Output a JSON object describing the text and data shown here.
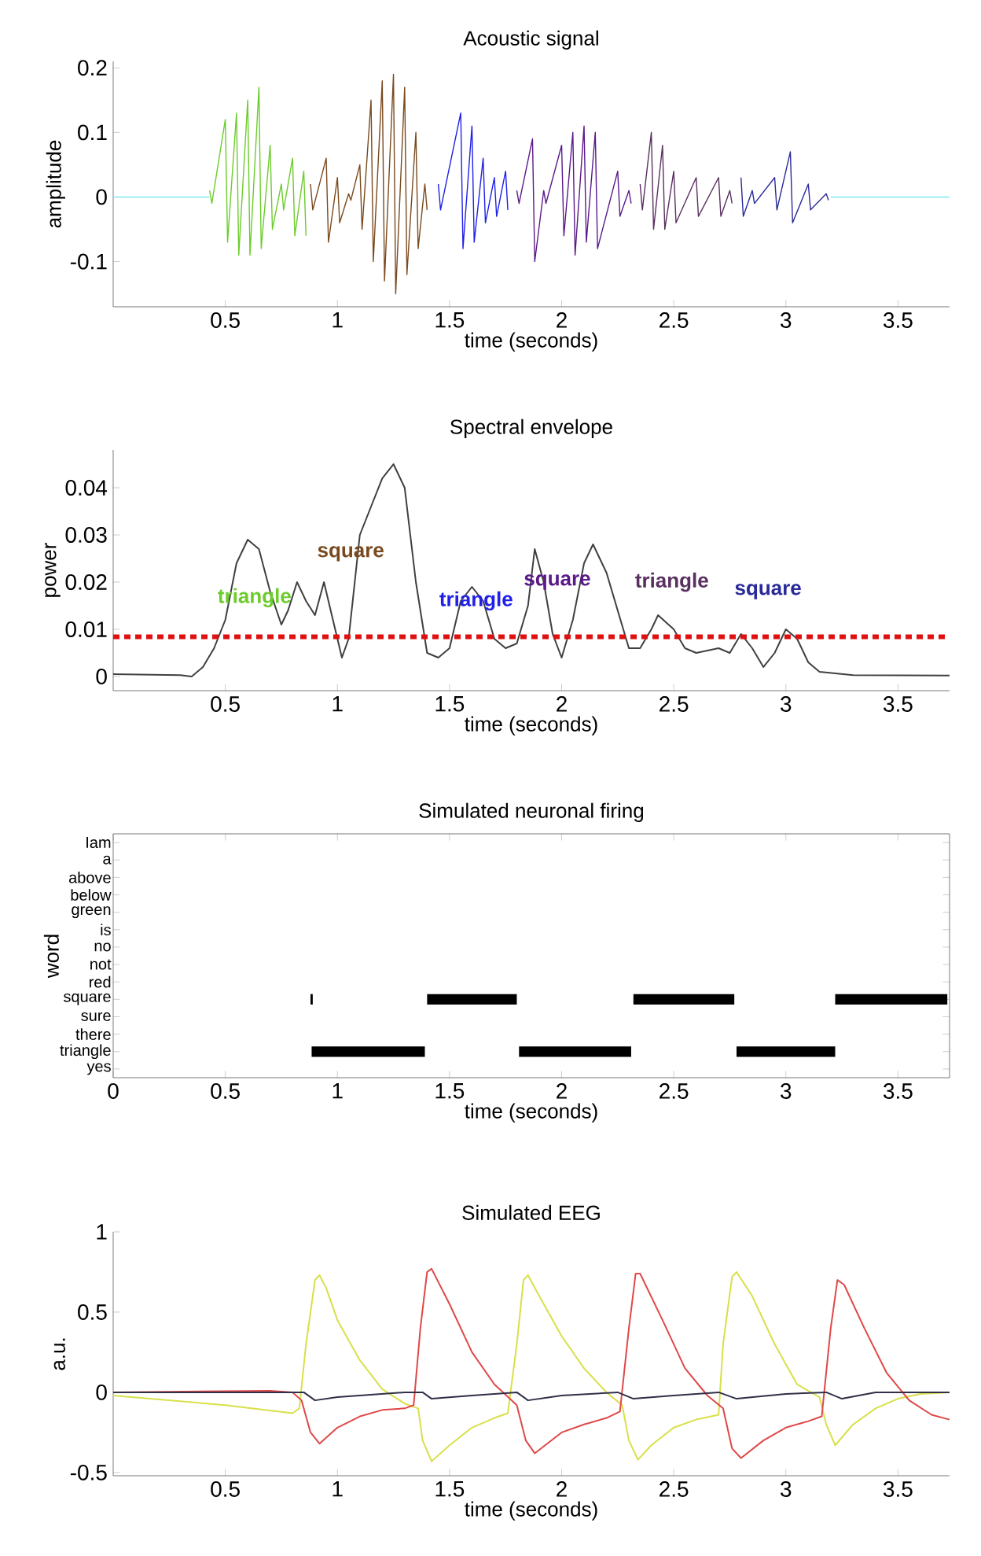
{
  "chart_data": [
    {
      "type": "line",
      "title": "Acoustic signal",
      "xlabel": "time (seconds)",
      "ylabel": "amplitude",
      "xlim": [
        0,
        3.73
      ],
      "ylim": [
        -0.17,
        0.21
      ],
      "xticks": [
        0.5,
        1,
        1.5,
        2,
        2.5,
        3,
        3.5
      ],
      "yticks": [
        -0.1,
        0,
        0.1,
        0.2
      ],
      "series": [
        {
          "color": "#7fe8f0",
          "x": [
            0,
            0.43
          ],
          "values": [
            0,
            0
          ]
        },
        {
          "color": "#6ccc2c",
          "x": [
            0.43,
            0.44,
            0.5,
            0.51,
            0.55,
            0.56,
            0.6,
            0.61,
            0.65,
            0.66,
            0.7,
            0.71,
            0.75,
            0.76,
            0.8,
            0.81,
            0.85,
            0.86
          ],
          "values": [
            0.01,
            -0.01,
            0.12,
            -0.07,
            0.13,
            -0.09,
            0.15,
            -0.09,
            0.17,
            -0.08,
            0.08,
            -0.05,
            0.02,
            -0.02,
            0.06,
            -0.06,
            0.04,
            -0.06
          ]
        },
        {
          "color": "#7a4a1e",
          "x": [
            0.88,
            0.89,
            0.95,
            0.96,
            1.0,
            1.01,
            1.05,
            1.06,
            1.1,
            1.11,
            1.15,
            1.16,
            1.2,
            1.21,
            1.25,
            1.26,
            1.3,
            1.31,
            1.35,
            1.36,
            1.39,
            1.4
          ],
          "values": [
            0.02,
            -0.02,
            0.06,
            -0.07,
            0.03,
            -0.04,
            0.005,
            -0.005,
            0.05,
            -0.05,
            0.15,
            -0.1,
            0.18,
            -0.13,
            0.19,
            -0.15,
            0.17,
            -0.12,
            0.1,
            -0.08,
            0.02,
            -0.02
          ]
        },
        {
          "color": "#2020e8",
          "x": [
            1.45,
            1.46,
            1.55,
            1.56,
            1.6,
            1.61,
            1.65,
            1.66,
            1.7,
            1.71,
            1.75,
            1.76
          ],
          "values": [
            0.02,
            -0.02,
            0.13,
            -0.08,
            0.11,
            -0.07,
            0.06,
            -0.04,
            0.03,
            -0.03,
            0.04,
            -0.02
          ]
        },
        {
          "color": "#5a1a8a",
          "x": [
            1.8,
            1.81,
            1.87,
            1.88,
            1.92,
            1.93,
            2.0,
            2.01,
            2.05,
            2.06,
            2.1,
            2.11,
            2.15,
            2.16,
            2.25,
            2.26,
            2.3,
            2.31
          ],
          "values": [
            0.01,
            -0.01,
            0.09,
            -0.1,
            0.01,
            -0.01,
            0.08,
            -0.06,
            0.1,
            -0.09,
            0.11,
            -0.07,
            0.1,
            -0.08,
            0.04,
            -0.03,
            0.01,
            -0.01
          ]
        },
        {
          "color": "#5a3060",
          "x": [
            2.35,
            2.36,
            2.4,
            2.41,
            2.45,
            2.46,
            2.5,
            2.51,
            2.6,
            2.61,
            2.7,
            2.71,
            2.75,
            2.76
          ],
          "values": [
            0.02,
            -0.02,
            0.1,
            -0.05,
            0.08,
            -0.05,
            0.04,
            -0.04,
            0.03,
            -0.03,
            0.03,
            -0.03,
            0.01,
            -0.01
          ]
        },
        {
          "color": "#2a2a9a",
          "x": [
            2.8,
            2.81,
            2.85,
            2.86,
            2.95,
            2.96,
            3.02,
            3.03,
            3.1,
            3.11,
            3.18,
            3.19
          ],
          "values": [
            0.03,
            -0.03,
            0.01,
            -0.01,
            0.03,
            -0.02,
            0.07,
            -0.04,
            0.02,
            -0.02,
            0.005,
            -0.005
          ]
        },
        {
          "color": "#7fe8f0",
          "x": [
            3.2,
            3.73
          ],
          "values": [
            0,
            0
          ]
        }
      ]
    },
    {
      "type": "line",
      "title": "Spectral envelope",
      "xlabel": "time (seconds)",
      "ylabel": "power",
      "xlim": [
        0,
        3.73
      ],
      "ylim": [
        -0.003,
        0.048
      ],
      "xticks": [
        0.5,
        1,
        1.5,
        2,
        2.5,
        3,
        3.5
      ],
      "yticks": [
        0,
        0.01,
        0.02,
        0.03,
        0.04
      ],
      "series": [
        {
          "color": "#404040",
          "x": [
            0,
            0.3,
            0.35,
            0.4,
            0.45,
            0.5,
            0.55,
            0.6,
            0.65,
            0.7,
            0.75,
            0.78,
            0.82,
            0.86,
            0.9,
            0.94,
            0.98,
            1.02,
            1.05,
            1.1,
            1.15,
            1.2,
            1.25,
            1.3,
            1.35,
            1.4,
            1.45,
            1.5,
            1.55,
            1.6,
            1.65,
            1.7,
            1.75,
            1.8,
            1.85,
            1.88,
            1.92,
            1.96,
            2.0,
            2.05,
            2.1,
            2.14,
            2.2,
            2.25,
            2.3,
            2.35,
            2.4,
            2.43,
            2.5,
            2.55,
            2.6,
            2.7,
            2.75,
            2.8,
            2.85,
            2.9,
            2.95,
            3.0,
            3.05,
            3.1,
            3.15,
            3.3,
            3.73
          ],
          "values": [
            0.0005,
            0.0003,
            0,
            0.002,
            0.006,
            0.012,
            0.024,
            0.029,
            0.027,
            0.018,
            0.011,
            0.014,
            0.02,
            0.016,
            0.013,
            0.02,
            0.012,
            0.004,
            0.008,
            0.03,
            0.036,
            0.042,
            0.045,
            0.04,
            0.02,
            0.005,
            0.004,
            0.006,
            0.016,
            0.019,
            0.016,
            0.008,
            0.006,
            0.007,
            0.015,
            0.027,
            0.02,
            0.009,
            0.004,
            0.012,
            0.024,
            0.028,
            0.022,
            0.014,
            0.006,
            0.006,
            0.01,
            0.013,
            0.01,
            0.006,
            0.005,
            0.006,
            0.005,
            0.009,
            0.006,
            0.002,
            0.005,
            0.01,
            0.008,
            0.003,
            0.001,
            0.0003,
            0.0002
          ]
        }
      ],
      "ref_lines": [
        {
          "axis": "y",
          "value": 0.0084,
          "color": "#e01010",
          "line_style": "dotted"
        }
      ],
      "annotations": [
        "triangle",
        "square",
        "triangle",
        "square",
        "triangle",
        "square"
      ]
    },
    {
      "type": "bar",
      "orientation": "horizontal",
      "title": "Simulated neuronal firing",
      "xlabel": "time (seconds)",
      "ylabel": "word",
      "xlim": [
        0,
        3.73
      ],
      "xticks": [
        0,
        0.5,
        1,
        1.5,
        2,
        2.5,
        3,
        3.5
      ],
      "categories": [
        "Iam",
        "a",
        "above",
        "below",
        "green",
        "is",
        "no",
        "not",
        "red",
        "square",
        "sure",
        "there",
        "triangle",
        "yes"
      ],
      "series": [
        {
          "color": "#000000",
          "values": [
            null,
            null,
            null,
            null,
            null,
            null,
            null,
            null,
            null,
            0.01,
            null,
            null,
            null,
            null
          ],
          "base": [
            null,
            null,
            null,
            null,
            null,
            null,
            null,
            null,
            null,
            0.88,
            null,
            null,
            null,
            null
          ]
        },
        {
          "color": "#000000",
          "values": [
            null,
            null,
            null,
            null,
            null,
            null,
            null,
            null,
            null,
            null,
            null,
            null,
            0.505,
            null
          ],
          "base": [
            null,
            null,
            null,
            null,
            null,
            null,
            null,
            null,
            null,
            null,
            null,
            null,
            0.885,
            null
          ]
        },
        {
          "color": "#000000",
          "values": [
            null,
            null,
            null,
            null,
            null,
            null,
            null,
            null,
            null,
            0.4,
            null,
            null,
            null,
            null
          ],
          "base": [
            null,
            null,
            null,
            null,
            null,
            null,
            null,
            null,
            null,
            1.4,
            null,
            null,
            null,
            null
          ]
        },
        {
          "color": "#000000",
          "values": [
            null,
            null,
            null,
            null,
            null,
            null,
            null,
            null,
            null,
            null,
            null,
            null,
            0.5,
            null
          ],
          "base": [
            null,
            null,
            null,
            null,
            null,
            null,
            null,
            null,
            null,
            null,
            null,
            null,
            1.81,
            null
          ]
        },
        {
          "color": "#000000",
          "values": [
            null,
            null,
            null,
            null,
            null,
            null,
            null,
            null,
            null,
            0.45,
            null,
            null,
            null,
            null
          ],
          "base": [
            null,
            null,
            null,
            null,
            null,
            null,
            null,
            null,
            null,
            2.32,
            null,
            null,
            null,
            null
          ]
        },
        {
          "color": "#000000",
          "values": [
            null,
            null,
            null,
            null,
            null,
            null,
            null,
            null,
            null,
            null,
            null,
            null,
            0.44,
            null
          ],
          "base": [
            null,
            null,
            null,
            null,
            null,
            null,
            null,
            null,
            null,
            null,
            null,
            null,
            2.78,
            null
          ]
        },
        {
          "color": "#000000",
          "values": [
            null,
            null,
            null,
            null,
            null,
            null,
            null,
            null,
            null,
            0.5,
            null,
            null,
            null,
            null
          ],
          "base": [
            null,
            null,
            null,
            null,
            null,
            null,
            null,
            null,
            null,
            3.22,
            null,
            null,
            null,
            null
          ]
        }
      ]
    },
    {
      "type": "line",
      "title": "Simulated EEG",
      "xlabel": "time (seconds)",
      "ylabel": "a.u.",
      "xlim": [
        0,
        3.73
      ],
      "ylim": [
        -0.52,
        1
      ],
      "xticks": [
        0.5,
        1,
        1.5,
        2,
        2.5,
        3,
        3.5
      ],
      "yticks": [
        -0.5,
        0,
        0.5,
        1
      ],
      "series": [
        {
          "color": "#d8e048",
          "x": [
            0,
            0.5,
            0.8,
            0.83,
            0.86,
            0.9,
            0.92,
            0.95,
            1.0,
            1.1,
            1.2,
            1.3,
            1.36,
            1.38,
            1.42,
            1.5,
            1.6,
            1.7,
            1.76,
            1.8,
            1.83,
            1.85,
            1.9,
            2.0,
            2.1,
            2.2,
            2.27,
            2.3,
            2.34,
            2.4,
            2.5,
            2.6,
            2.7,
            2.72,
            2.76,
            2.78,
            2.85,
            2.95,
            3.05,
            3.15,
            3.18,
            3.22,
            3.3,
            3.4,
            3.5,
            3.6,
            3.73
          ],
          "values": [
            -0.02,
            -0.08,
            -0.13,
            -0.1,
            0.3,
            0.7,
            0.73,
            0.65,
            0.45,
            0.2,
            0.02,
            -0.07,
            -0.1,
            -0.3,
            -0.43,
            -0.33,
            -0.22,
            -0.16,
            -0.13,
            0.3,
            0.7,
            0.73,
            0.6,
            0.35,
            0.15,
            0.0,
            -0.08,
            -0.3,
            -0.42,
            -0.33,
            -0.22,
            -0.17,
            -0.14,
            0.3,
            0.72,
            0.75,
            0.6,
            0.3,
            0.05,
            -0.03,
            -0.2,
            -0.33,
            -0.2,
            -0.1,
            -0.04,
            -0.01,
            0
          ]
        },
        {
          "color": "#e04848",
          "x": [
            0,
            0.7,
            0.8,
            0.84,
            0.88,
            0.92,
            1.0,
            1.1,
            1.2,
            1.3,
            1.34,
            1.37,
            1.4,
            1.42,
            1.5,
            1.6,
            1.7,
            1.8,
            1.84,
            1.88,
            2.0,
            2.1,
            2.2,
            2.26,
            2.3,
            2.33,
            2.35,
            2.45,
            2.55,
            2.65,
            2.72,
            2.76,
            2.8,
            2.9,
            3.0,
            3.1,
            3.16,
            3.2,
            3.23,
            3.26,
            3.35,
            3.45,
            3.55,
            3.65,
            3.73
          ],
          "values": [
            0,
            0.01,
            0.0,
            -0.05,
            -0.25,
            -0.32,
            -0.22,
            -0.15,
            -0.11,
            -0.1,
            -0.08,
            0.4,
            0.75,
            0.77,
            0.55,
            0.25,
            0.05,
            -0.08,
            -0.3,
            -0.38,
            -0.25,
            -0.2,
            -0.16,
            -0.12,
            0.4,
            0.74,
            0.74,
            0.45,
            0.15,
            -0.02,
            -0.1,
            -0.35,
            -0.41,
            -0.3,
            -0.22,
            -0.18,
            -0.15,
            0.4,
            0.7,
            0.67,
            0.4,
            0.12,
            -0.05,
            -0.14,
            -0.17
          ]
        },
        {
          "color": "#303048",
          "x": [
            0,
            0.85,
            0.9,
            1.0,
            1.3,
            1.38,
            1.42,
            1.6,
            1.8,
            1.85,
            2.0,
            2.25,
            2.32,
            2.5,
            2.7,
            2.78,
            3.0,
            3.18,
            3.25,
            3.4,
            3.73
          ],
          "values": [
            0,
            0,
            -0.05,
            -0.03,
            0.0,
            0,
            -0.04,
            -0.02,
            0.0,
            -0.05,
            -0.02,
            0.0,
            -0.04,
            -0.02,
            0.0,
            -0.04,
            -0.01,
            0.0,
            -0.04,
            0,
            0
          ]
        }
      ]
    }
  ]
}
